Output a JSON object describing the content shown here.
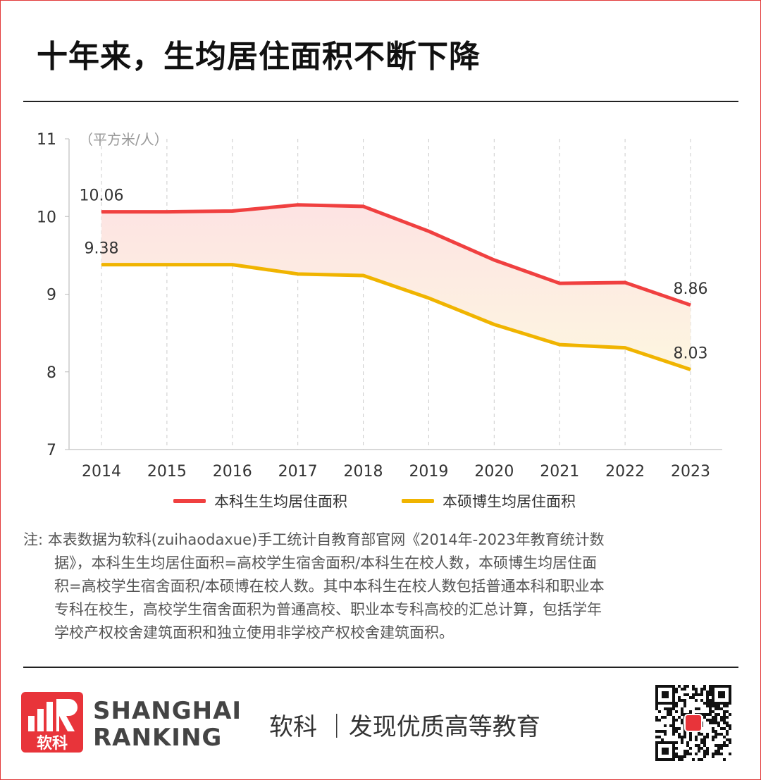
{
  "title": "十年来，生均居住面积不断下降",
  "chart_data": {
    "type": "line",
    "title": "",
    "ylabel": "（平方米/人）",
    "xlabel": "",
    "ylim": [
      7,
      11
    ],
    "yticks": [
      "7",
      "8",
      "9",
      "10",
      "11"
    ],
    "categories": [
      "2014",
      "2015",
      "2016",
      "2017",
      "2018",
      "2019",
      "2020",
      "2021",
      "2022",
      "2023"
    ],
    "grid": "vertical dashed",
    "legend_position": "bottom",
    "shaded_band_between_series": true,
    "series": [
      {
        "name": "本科生生均居住面积",
        "color": "#f04040",
        "values": [
          10.06,
          10.06,
          10.07,
          10.15,
          10.13,
          9.81,
          9.44,
          9.14,
          9.15,
          8.86
        ],
        "labels": {
          "0": "10.06",
          "9": "8.86"
        }
      },
      {
        "name": "本硕博生均居住面积",
        "color": "#f0b400",
        "values": [
          9.38,
          9.38,
          9.38,
          9.26,
          9.24,
          8.95,
          8.61,
          8.35,
          8.31,
          8.03
        ],
        "labels": {
          "0": "9.38",
          "9": "8.03"
        }
      }
    ]
  },
  "note": {
    "prefix": "注:",
    "lines": [
      "本表数据为软科(zuihaodaxue)手工统计自教育部官网《2014年-2023年教育统计数",
      "据》，本科生生均居住面积=高校学生宿舍面积/本科生在校人数，本硕博生均居住面",
      "积=高校学生宿舍面积/本硕博在校人数。其中本科生在校人数包括普通本科和职业本",
      "专科在校生，高校学生宿舍面积为普通高校、职业本专科高校的汇总计算，包括学年",
      "学校产权校舍建筑面积和独立使用非学校产权校舍建筑面积。"
    ]
  },
  "footer": {
    "logo_text": "软科",
    "brand_line1": "SHANGHAI",
    "brand_line2": "RANKING",
    "slogan": "软科 ｜发现优质高等教育",
    "watermark": "SHANGHAI RANKING 软科",
    "accent": "#e8343a"
  }
}
